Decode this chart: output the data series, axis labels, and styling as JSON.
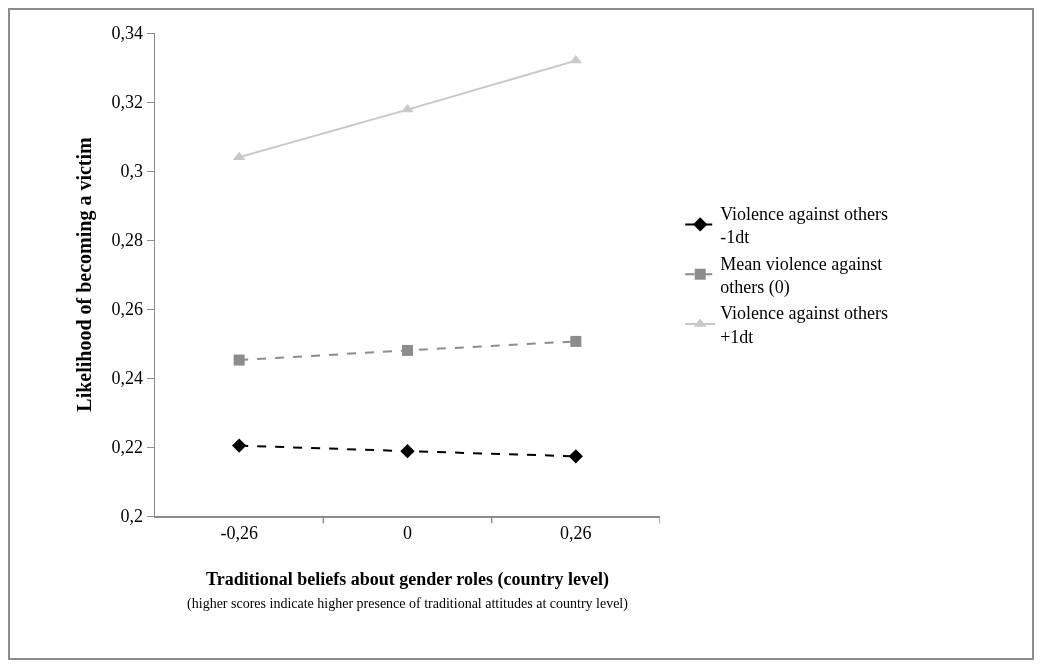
{
  "chart_data": {
    "type": "line",
    "xlabel": "Traditional beliefs about gender roles (country level)\n(higher scores indicate higher presence of traditional attitudes at country level)",
    "ylabel": "Likelihood of becoming a victim",
    "categories": [
      "-0,26",
      "0",
      "0,26"
    ],
    "series": [
      {
        "name": "Violence against others\n-1dt",
        "color": "#000000",
        "marker": "diamond",
        "line_style": "dashed",
        "values": [
          0.2204,
          0.2188,
          0.2173
        ]
      },
      {
        "name": "Mean violence against\nothers (0)",
        "color": "#8c8c8c",
        "marker": "square",
        "line_style": "dashed",
        "values": [
          0.2452,
          0.248,
          0.2506
        ]
      },
      {
        "name": "Violence against others\n+1dt",
        "color": "#c8c8c8",
        "marker": "triangle",
        "line_style": "solid",
        "values": [
          0.304,
          0.3178,
          0.332
        ]
      }
    ],
    "ylim": [
      0.2,
      0.34
    ],
    "yticks": [
      {
        "value": 0.2,
        "label": "0,2"
      },
      {
        "value": 0.22,
        "label": "0,22"
      },
      {
        "value": 0.24,
        "label": "0,24"
      },
      {
        "value": 0.26,
        "label": "0,26"
      },
      {
        "value": 0.28,
        "label": "0,28"
      },
      {
        "value": 0.3,
        "label": "0,3"
      },
      {
        "value": 0.32,
        "label": "0,32"
      },
      {
        "value": 0.34,
        "label": "0,34"
      }
    ],
    "grid": false,
    "legend": "right"
  }
}
